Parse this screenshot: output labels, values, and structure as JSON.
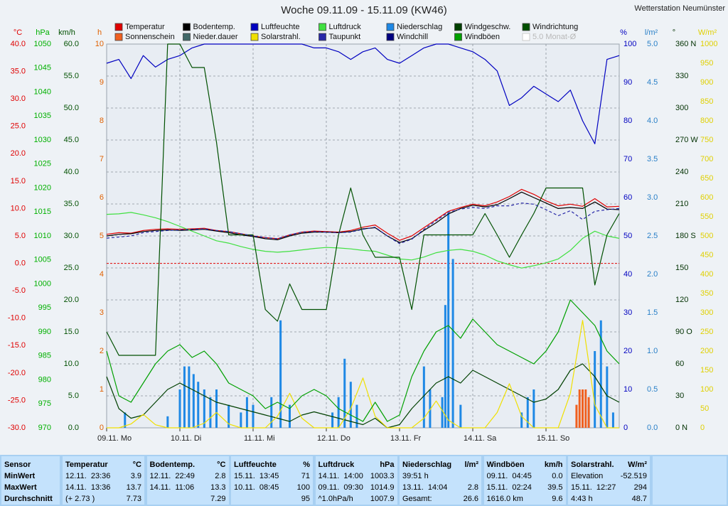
{
  "header": {
    "title": "Woche 09.11.09 - 15.11.09 (KW46)",
    "station": "Wetterstation Neumünster"
  },
  "chart_data": {
    "type": "line",
    "xlim": [
      0,
      168
    ],
    "xticks": [
      {
        "value": 0,
        "label": "09.11. Mo"
      },
      {
        "value": 24,
        "label": "10.11. Di"
      },
      {
        "value": 48,
        "label": "11.11. Mi"
      },
      {
        "value": 72,
        "label": "12.11. Do"
      },
      {
        "value": 96,
        "label": "13.11. Fr"
      },
      {
        "value": 120,
        "label": "14.11. Sa"
      },
      {
        "value": 144,
        "label": "15.11. So"
      }
    ],
    "x": [
      0,
      4,
      8,
      12,
      16,
      20,
      24,
      28,
      32,
      36,
      40,
      44,
      48,
      52,
      56,
      60,
      64,
      68,
      72,
      76,
      80,
      84,
      88,
      92,
      96,
      100,
      104,
      108,
      112,
      116,
      120,
      124,
      128,
      132,
      136,
      140,
      144,
      148,
      152,
      156,
      160,
      164,
      168
    ],
    "grid_axis": "wind",
    "axes": {
      "temp": {
        "unit": "°C",
        "color": "#e00000",
        "ylim": [
          -30,
          40
        ],
        "yticks": [
          {
            "value": 40,
            "label": "40.0"
          },
          {
            "value": 35,
            "label": "35.0"
          },
          {
            "value": 30,
            "label": "30.0"
          },
          {
            "value": 25,
            "label": "25.0"
          },
          {
            "value": 20,
            "label": "20.0"
          },
          {
            "value": 15,
            "label": "15.0"
          },
          {
            "value": 10,
            "label": "10.0"
          },
          {
            "value": 5,
            "label": "5.0"
          },
          {
            "value": 0,
            "label": "0.0"
          },
          {
            "value": -5,
            "label": "-5.0"
          },
          {
            "value": -10,
            "label": "-10.0"
          },
          {
            "value": -15,
            "label": "-15.0"
          },
          {
            "value": -20,
            "label": "-20.0"
          },
          {
            "value": -25,
            "label": "-25.0"
          },
          {
            "value": -30,
            "label": "-30.0"
          }
        ]
      },
      "press": {
        "unit": "hPa",
        "color": "#00b000",
        "ylim": [
          970,
          1050
        ],
        "yticks": [
          1050,
          1045,
          1040,
          1035,
          1030,
          1025,
          1020,
          1015,
          1010,
          1005,
          1000,
          995,
          990,
          985,
          980,
          975,
          970
        ]
      },
      "wind": {
        "unit": "km/h",
        "color": "#005000",
        "ylim": [
          0,
          60
        ],
        "yticks": [
          {
            "value": 60,
            "label": "60.0"
          },
          {
            "value": 55,
            "label": "55.0"
          },
          {
            "value": 50,
            "label": "50.0"
          },
          {
            "value": 45,
            "label": "45.0"
          },
          {
            "value": 40,
            "label": "40.0"
          },
          {
            "value": 35,
            "label": "35.0"
          },
          {
            "value": 30,
            "label": "30.0"
          },
          {
            "value": 25,
            "label": "25.0"
          },
          {
            "value": 20,
            "label": "20.0"
          },
          {
            "value": 15,
            "label": "15.0"
          },
          {
            "value": 10,
            "label": "10.0"
          },
          {
            "value": 5,
            "label": "5.0"
          },
          {
            "value": 0,
            "label": "0.0"
          }
        ]
      },
      "sun": {
        "unit": "h",
        "color": "#e06000",
        "ylim": [
          0,
          10
        ],
        "yticks": [
          10,
          9,
          8,
          7,
          6,
          5,
          4,
          3,
          2,
          1,
          0
        ]
      },
      "hum": {
        "unit": "%",
        "color": "#0000c0",
        "ylim": [
          0,
          100
        ],
        "yticks": [
          100,
          90,
          80,
          70,
          60,
          50,
          40,
          30,
          20,
          10,
          0
        ]
      },
      "rain": {
        "unit": "l/m²",
        "color": "#2a80c8",
        "ylim": [
          0,
          5
        ],
        "yticks": [
          {
            "value": 5,
            "label": "5.0"
          },
          {
            "value": 4.5,
            "label": "4.5"
          },
          {
            "value": 4,
            "label": "4.0"
          },
          {
            "value": 3.5,
            "label": "3.5"
          },
          {
            "value": 3,
            "label": "3.0"
          },
          {
            "value": 2.5,
            "label": "2.5"
          },
          {
            "value": 2,
            "label": "2.0"
          },
          {
            "value": 1.5,
            "label": "1.5"
          },
          {
            "value": 1,
            "label": "1.0"
          },
          {
            "value": 0.5,
            "label": "0.5"
          },
          {
            "value": 0,
            "label": "0.0"
          }
        ]
      },
      "dir": {
        "unit": "°",
        "color": "#003000",
        "ylim": [
          0,
          360
        ],
        "yticks": [
          {
            "value": 360,
            "label": "360 N"
          },
          330,
          300,
          {
            "value": 270,
            "label": "270 W"
          },
          240,
          210,
          {
            "value": 180,
            "label": "180 S"
          },
          150,
          120,
          {
            "value": 90,
            "label": "90 O"
          },
          60,
          30,
          {
            "value": 0,
            "label": "0 N"
          }
        ]
      },
      "solar": {
        "unit": "W/m²",
        "color": "#e0d000",
        "ylim": [
          0,
          1000
        ],
        "yticks": [
          1000,
          950,
          900,
          850,
          800,
          750,
          700,
          650,
          600,
          550,
          500,
          450,
          400,
          350,
          300,
          250,
          200,
          150,
          100,
          50,
          0
        ]
      }
    },
    "reference_line": {
      "axis": "temp",
      "value": 0,
      "color": "#e00000"
    },
    "series": [
      {
        "name": "Temperatur",
        "color": "#e00000",
        "axis": "temp",
        "values": [
          5.3,
          5.6,
          5.5,
          6.0,
          6.2,
          6.3,
          6.2,
          6.3,
          6.4,
          6.0,
          5.8,
          5.4,
          5.0,
          4.7,
          4.5,
          5.2,
          5.7,
          5.9,
          5.8,
          5.7,
          6.0,
          6.6,
          7.0,
          5.5,
          4.2,
          5.0,
          6.5,
          8.0,
          9.5,
          10.2,
          10.8,
          10.5,
          11.2,
          12.2,
          13.5,
          12.6,
          11.4,
          10.5,
          10.8,
          10.4,
          11.8,
          10.3,
          10.4
        ]
      },
      {
        "name": "Bodentemp.",
        "color": "#000000",
        "axis": "temp",
        "values": [
          5.0,
          5.3,
          5.4,
          5.8,
          6.0,
          6.1,
          6.0,
          6.1,
          6.2,
          5.9,
          5.6,
          5.2,
          4.9,
          4.5,
          4.3,
          5.0,
          5.5,
          5.7,
          5.7,
          5.6,
          5.8,
          6.3,
          6.5,
          5.0,
          3.8,
          4.5,
          6.0,
          7.4,
          9.0,
          10.0,
          10.6,
          10.3,
          10.7,
          11.8,
          13.0,
          12.0,
          11.0,
          10.0,
          10.2,
          10.0,
          11.2,
          9.9,
          9.8
        ]
      },
      {
        "name": "Luftfeuchte",
        "color": "#0000c0",
        "axis": "hum",
        "values": [
          95,
          96,
          91,
          97,
          94,
          96,
          97,
          99,
          100,
          100,
          100,
          100,
          100,
          100,
          100,
          100,
          100,
          99,
          99,
          98,
          96,
          98,
          99,
          96,
          95,
          97,
          99,
          100,
          100,
          99,
          98,
          96,
          93,
          84,
          86,
          89,
          87,
          85,
          88,
          80,
          74,
          96,
          97
        ]
      },
      {
        "name": "Luftdruck",
        "color": "#40e040",
        "axis": "press",
        "values": [
          1014.5,
          1014.6,
          1014.9,
          1014.4,
          1013.8,
          1013,
          1012,
          1011,
          1010,
          1009,
          1008.5,
          1007.8,
          1007.2,
          1006.8,
          1006.6,
          1006.8,
          1007.1,
          1007.4,
          1007.6,
          1007.5,
          1007.3,
          1007,
          1006.8,
          1006,
          1005.2,
          1005,
          1005.6,
          1006.5,
          1007,
          1007.2,
          1006.8,
          1006,
          1004.8,
          1004,
          1003.3,
          1003.8,
          1004.4,
          1005.2,
          1007,
          1009.5,
          1011,
          1010,
          1009.5
        ]
      },
      {
        "name": "Niederschlag",
        "color": "#1e88e5",
        "axis": "rain",
        "kind": "bar",
        "x": [
          6,
          20,
          24,
          25.5,
          27,
          28.5,
          30,
          32,
          34,
          36,
          40,
          44,
          46,
          48,
          54,
          57,
          60,
          74,
          76,
          78,
          80,
          82,
          104,
          106,
          110,
          111,
          112,
          113.5,
          116,
          136,
          138,
          140,
          158,
          160,
          162,
          164,
          166
        ],
        "values": [
          0.2,
          0.15,
          0.5,
          0.8,
          0.8,
          0.7,
          0.6,
          0.5,
          0.4,
          0.5,
          0.3,
          0.2,
          0.4,
          0.3,
          0.4,
          1.4,
          0.3,
          0.2,
          0.4,
          0.9,
          0.6,
          0.3,
          0.8,
          0.5,
          0.4,
          1.6,
          2.8,
          2.2,
          0.3,
          0.2,
          0.4,
          0.5,
          0.3,
          1.0,
          1.4,
          0.8,
          0.2
        ]
      },
      {
        "name": "Windgeschw.",
        "color": "#004000",
        "axis": "wind",
        "values": [
          8,
          3,
          1.5,
          2,
          4,
          6,
          7,
          6,
          5,
          4,
          3.5,
          3,
          2.5,
          2,
          1.5,
          1,
          2,
          2.5,
          2,
          1.5,
          1,
          0.5,
          1.5,
          0,
          0.5,
          3,
          5,
          7,
          8,
          7,
          9,
          8,
          7,
          6,
          5,
          4,
          4.5,
          6,
          9,
          10,
          8,
          5,
          4
        ]
      },
      {
        "name": "Windrichtung",
        "color": "#005000",
        "axis": "dir",
        "values": [
          90,
          68,
          68,
          68,
          68,
          360,
          360,
          338,
          338,
          268,
          181,
          181,
          181,
          111,
          100,
          135,
          111,
          111,
          111,
          181,
          225,
          181,
          160,
          160,
          160,
          111,
          181,
          181,
          181,
          181,
          181,
          201,
          181,
          160,
          181,
          201,
          225,
          225,
          225,
          225,
          134,
          181,
          201
        ]
      },
      {
        "name": "Sonnenschein",
        "color": "#f06020",
        "axis": "sun",
        "kind": "bar",
        "x": [
          154,
          155,
          156,
          157,
          158
        ],
        "values": [
          0.6,
          1,
          1,
          1,
          0.8
        ]
      },
      {
        "name": "Nieder.dauer",
        "color": "#406868"
      },
      {
        "name": "Solarstrahl.",
        "color": "#f0e000",
        "axis": "solar",
        "values": [
          0,
          0,
          10,
          35,
          8,
          0,
          0,
          0,
          12,
          40,
          10,
          0,
          0,
          0,
          30,
          90,
          25,
          0,
          0,
          0,
          50,
          130,
          30,
          0,
          0,
          0,
          25,
          70,
          20,
          0,
          0,
          0,
          40,
          115,
          30,
          0,
          0,
          0,
          90,
          280,
          60,
          0,
          0
        ]
      },
      {
        "name": "Taupunkt",
        "color": "#2828a8",
        "axis": "temp",
        "dash": true,
        "values": [
          4.6,
          4.8,
          5.0,
          5.6,
          5.8,
          6.0,
          6.1,
          6.2,
          6.3,
          6.0,
          5.8,
          5.4,
          5.0,
          4.7,
          4.5,
          5.2,
          5.7,
          5.8,
          5.7,
          5.6,
          5.7,
          6.2,
          6.6,
          5.0,
          3.6,
          4.4,
          6.2,
          7.8,
          9.3,
          9.9,
          10.2,
          10.0,
          10.5,
          10.5,
          11.0,
          10.8,
          9.8,
          8.7,
          9.6,
          8.0,
          9.5,
          9.8,
          10.0
        ]
      },
      {
        "name": "Windchill",
        "color": "#000080"
      },
      {
        "name": "Windböen",
        "color": "#00a000",
        "axis": "wind",
        "values": [
          12,
          5,
          4,
          7,
          10,
          12,
          13,
          11,
          12,
          10,
          7,
          6,
          5,
          3,
          4,
          3,
          5,
          6,
          5,
          3,
          2,
          1,
          4,
          1,
          2,
          8,
          12,
          15,
          16,
          14,
          17,
          15,
          13,
          12,
          11,
          10,
          12,
          15,
          20,
          18,
          16,
          12,
          10
        ]
      },
      {
        "name": "5.0 Monat-Ø",
        "color": "#d0d0d0",
        "disabled": true
      }
    ]
  },
  "table": {
    "sensor_header": "Sensor",
    "row_labels": [
      "MinWert",
      "MaxWert",
      "Durchschnitt"
    ],
    "columns": [
      {
        "title": "Temperatur",
        "unit": "°C",
        "cells": [
          {
            "time": "12.11.  23:36",
            "value": "3.9"
          },
          {
            "time": "14.11.  13:36",
            "value": "13.7"
          },
          {
            "time": "(+ 2.73 )",
            "value": "7.73"
          }
        ]
      },
      {
        "title": "Bodentemp.",
        "unit": "°C",
        "cells": [
          {
            "time": "12.11.  22:49",
            "value": "2.8"
          },
          {
            "time": "14.11.  11:06",
            "value": "13.3"
          },
          {
            "value": "7.29"
          }
        ]
      },
      {
        "title": "Luftfeuchte",
        "unit": "%",
        "cells": [
          {
            "time": "15.11.  13:45",
            "value": "71"
          },
          {
            "time": "10.11.  08:45",
            "value": "100"
          },
          {
            "value": "95"
          }
        ]
      },
      {
        "title": "Luftdruck",
        "unit": "hPa",
        "cells": [
          {
            "time": "14.11.  14:00",
            "value": "1003.3"
          },
          {
            "time": "09.11.  09:30",
            "value": "1014.9"
          },
          {
            "time": "^1.0hPa/h",
            "value": "1007.9"
          }
        ]
      },
      {
        "title": "Niederschlag",
        "unit": "l/m²",
        "cells": [
          {
            "time": "39:51 h"
          },
          {
            "time": "13.11.  14:04",
            "value": "2.8"
          },
          {
            "time": "Gesamt:",
            "value": "26.6"
          }
        ]
      },
      {
        "title": "Windböen",
        "unit": "km/h",
        "cells": [
          {
            "time": "09.11.  04:45",
            "value": "0.0"
          },
          {
            "time": "15.11.  02:24",
            "value": "39.5"
          },
          {
            "time": "1616.0 km",
            "value": "9.6"
          }
        ]
      },
      {
        "title": "Solarstrahl.",
        "unit": "W/m²",
        "cells": [
          {
            "time": "Elevation",
            "value": "-52.519"
          },
          {
            "time": "15.11.  12:27",
            "value": "294"
          },
          {
            "time": "4:43 h",
            "value": "48.7"
          }
        ]
      }
    ]
  }
}
